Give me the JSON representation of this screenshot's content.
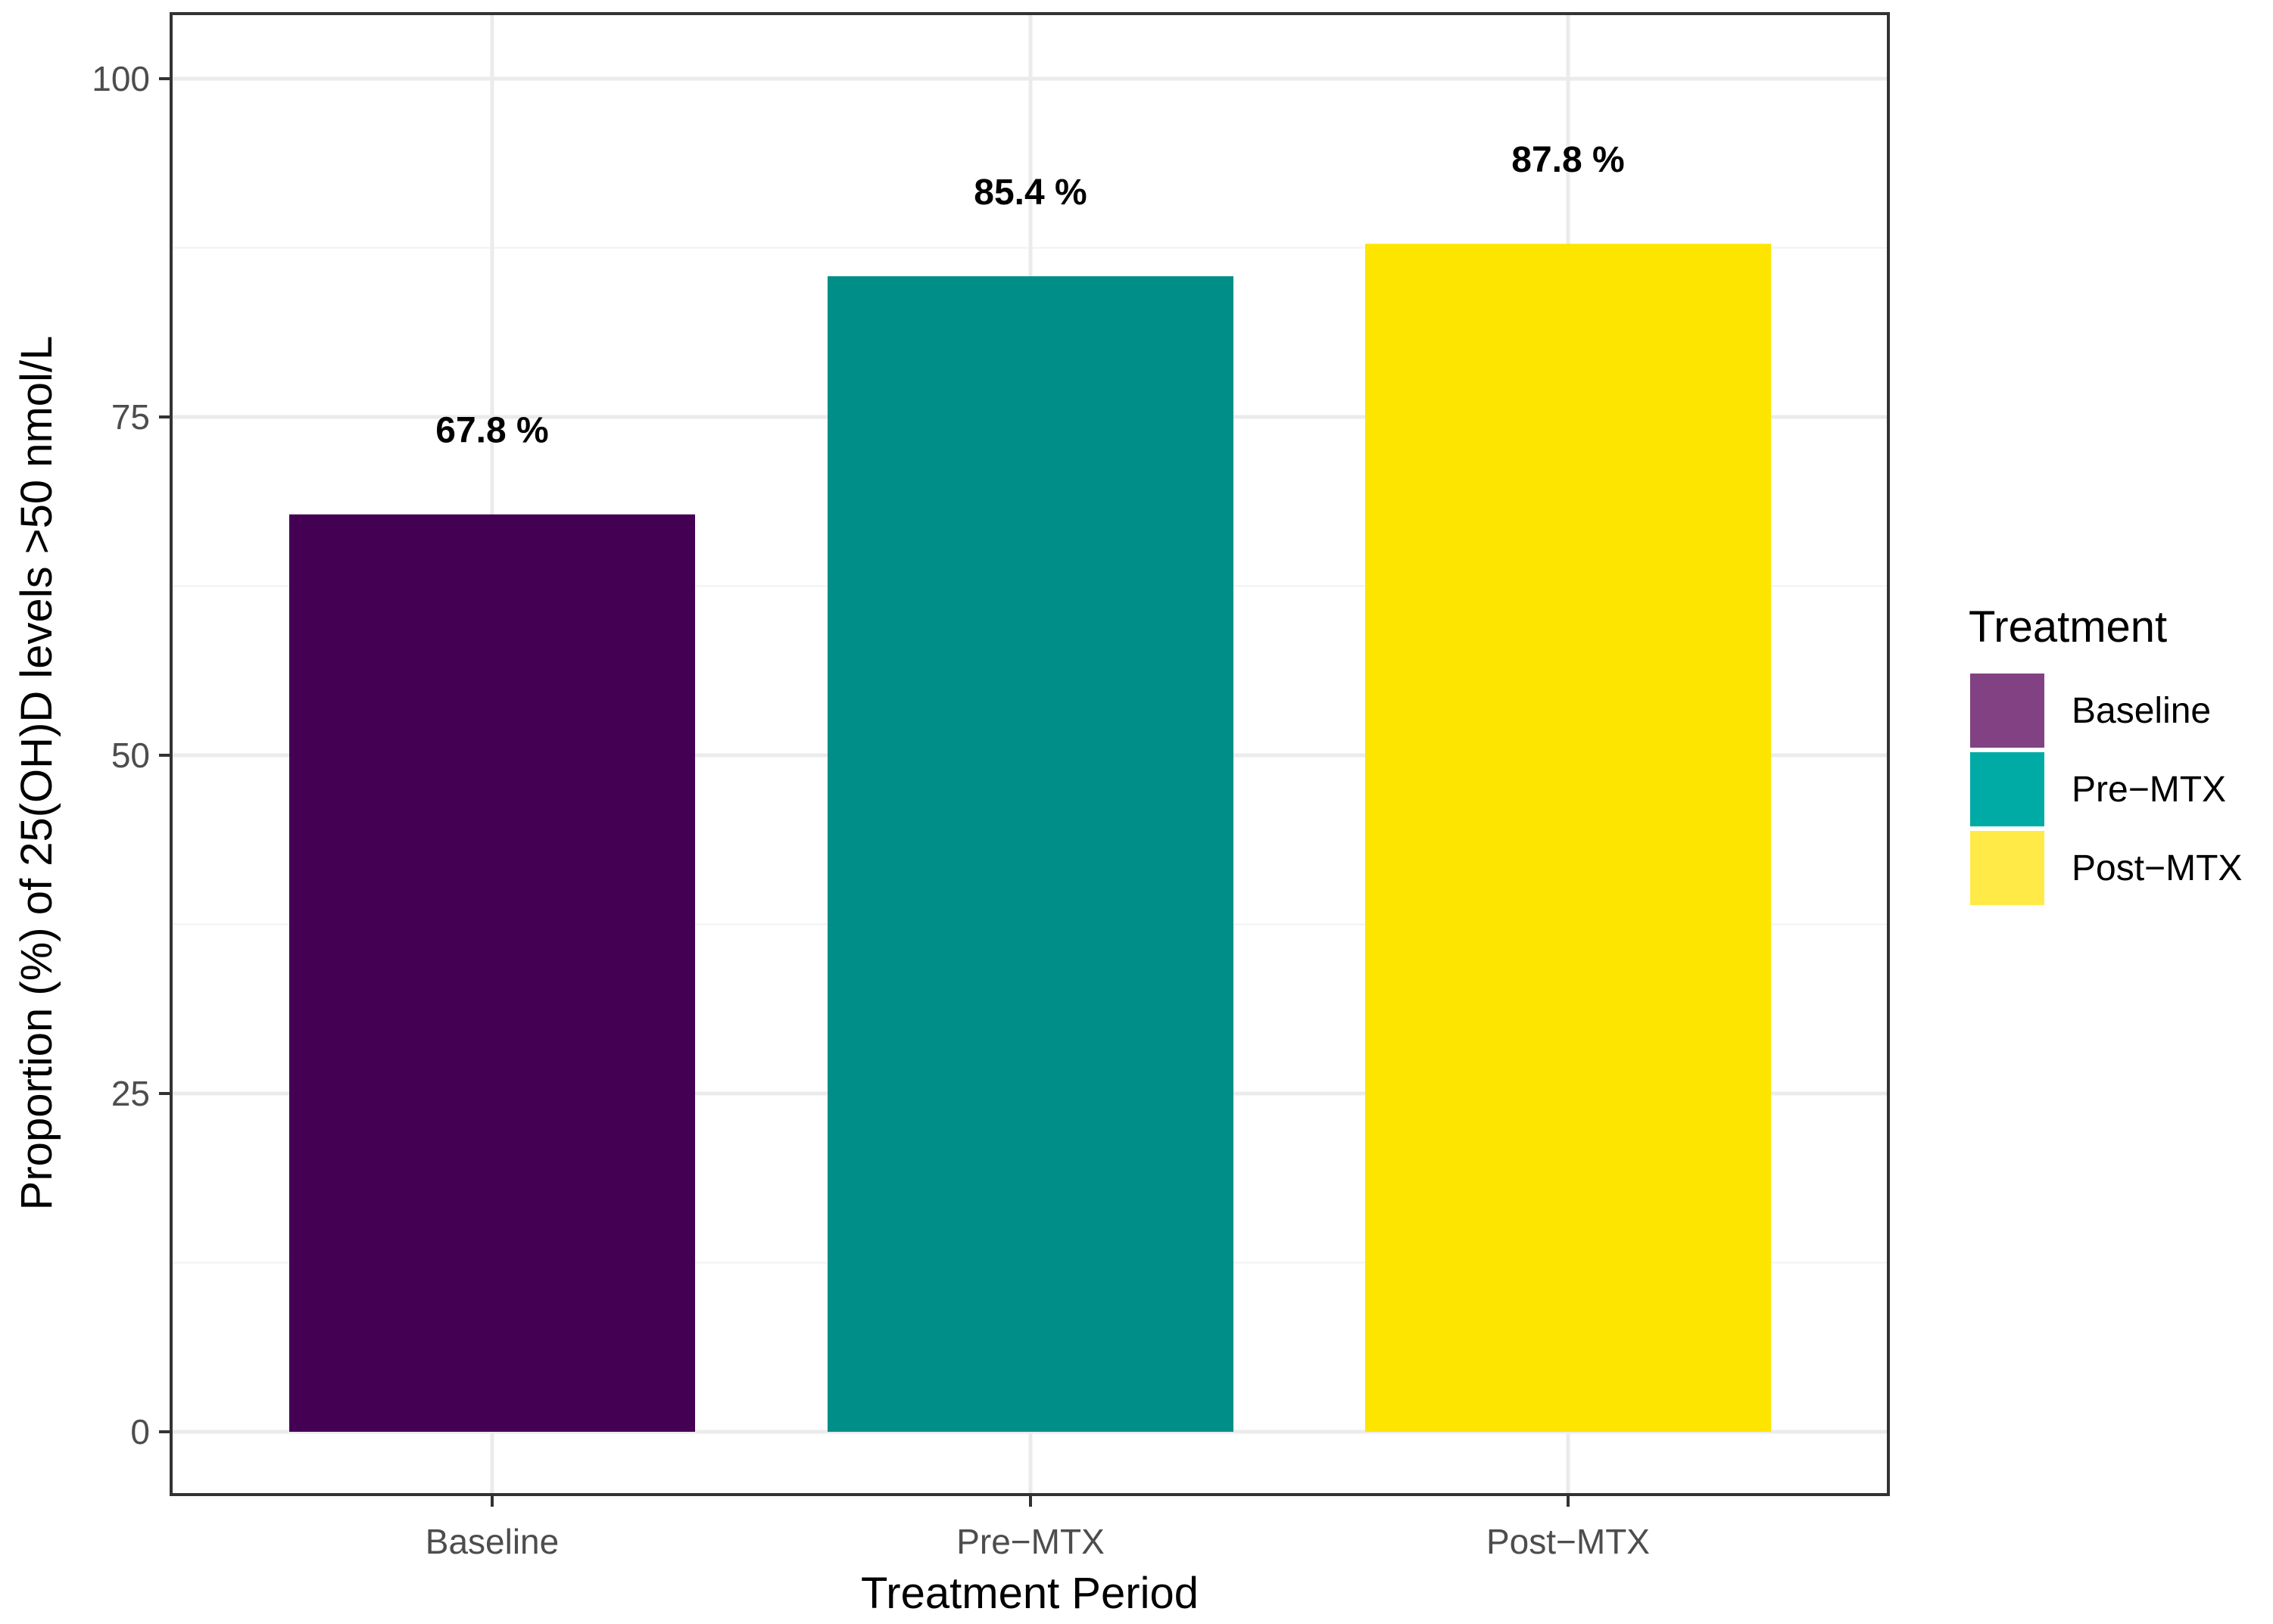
{
  "chart_data": {
    "type": "bar",
    "categories": [
      "Baseline",
      "Pre−MTX",
      "Post−MTX"
    ],
    "values": [
      67.8,
      85.4,
      87.8
    ],
    "data_labels": [
      "67.8 %",
      "85.4 %",
      "87.8 %"
    ],
    "colors": [
      "#440154",
      "#008f88",
      "#fde500"
    ],
    "xlabel": "Treatment Period",
    "ylabel": "Proportion (%) of 25(OH)D levels >50 nmol/L",
    "ylim": [
      0,
      100
    ],
    "yticks": [
      0,
      25,
      50,
      75,
      100
    ],
    "grid": true,
    "legend": {
      "title": "Treatment",
      "placement": "right",
      "entries": [
        {
          "label": "Baseline",
          "color": "#824183"
        },
        {
          "label": "Pre−MTX",
          "color": "#00aba5"
        },
        {
          "label": "Post−MTX",
          "color": "#ffea47"
        }
      ]
    }
  }
}
